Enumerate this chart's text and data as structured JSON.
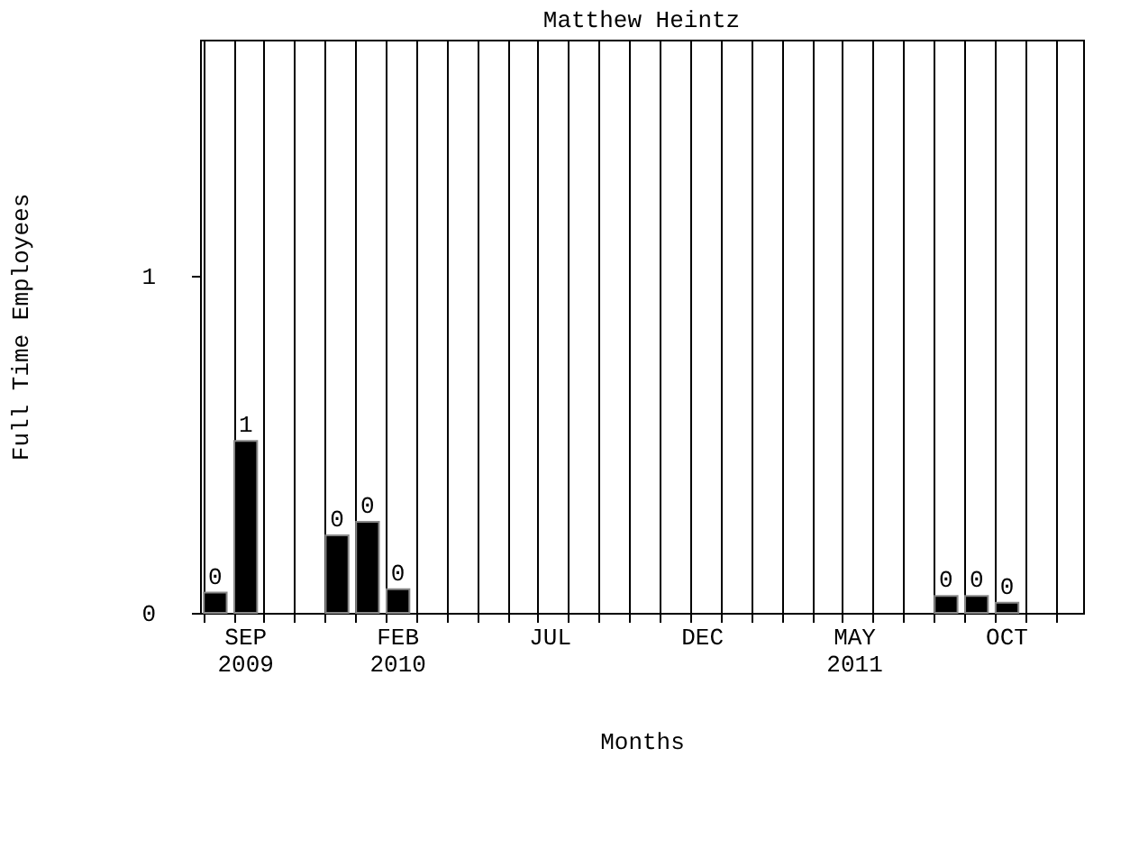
{
  "chart_data": {
    "type": "bar",
    "title": "Matthew Heintz",
    "xlabel": "Months",
    "ylabel": "Full Time Employees",
    "categories": [
      null,
      "SEP\n2009",
      null,
      null,
      null,
      null,
      "FEB\n2010",
      null,
      null,
      null,
      null,
      "JUL",
      null,
      null,
      null,
      null,
      "DEC",
      null,
      null,
      null,
      null,
      "MAY\n2011",
      null,
      null,
      null,
      null,
      "OCT",
      null,
      null
    ],
    "values": [
      0.06,
      0.51,
      null,
      null,
      0.23,
      0.27,
      0.07,
      null,
      null,
      null,
      null,
      null,
      null,
      null,
      null,
      null,
      null,
      null,
      null,
      null,
      null,
      null,
      null,
      null,
      0.05,
      0.05,
      0.03,
      null,
      null
    ],
    "value_labels": [
      "0",
      "1",
      null,
      null,
      "0",
      "0",
      "0",
      null,
      null,
      null,
      null,
      null,
      null,
      null,
      null,
      null,
      null,
      null,
      null,
      null,
      null,
      null,
      null,
      null,
      "0",
      "0",
      "0",
      null,
      null
    ],
    "color": "#000000",
    "ylim": [
      0,
      1.7
    ],
    "yticks": [
      0,
      1
    ],
    "grid": "x"
  }
}
